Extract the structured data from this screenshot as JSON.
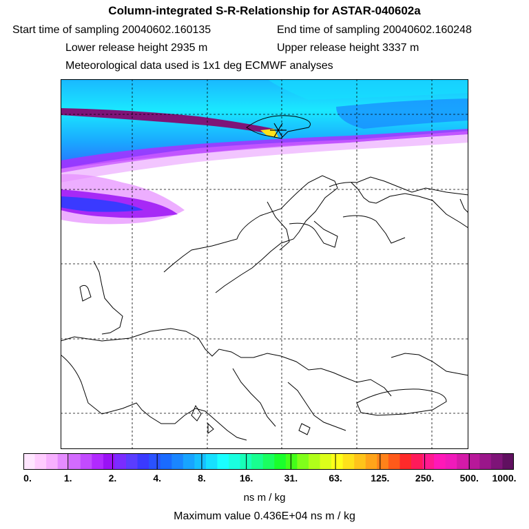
{
  "title": "Column-integrated S-R-Relationship for ASTAR-040602a",
  "header": {
    "start_time": "Start time of sampling 20040602.160135",
    "end_time": "End time of sampling 20040602.160248",
    "lower_height": "Lower release height 2935 m",
    "upper_height": "Upper release height 3337 m",
    "met_data": "Meteorological data used is 1x1 deg ECMWF analyses"
  },
  "colorbar": {
    "colors": [
      "#ffe6ff",
      "#ffccff",
      "#f7b0ff",
      "#e58cff",
      "#d36bff",
      "#c24bff",
      "#b12aff",
      "#9a12f5",
      "#7a2cff",
      "#5a3dff",
      "#3a3aff",
      "#2a52ff",
      "#1a6bff",
      "#1a86ff",
      "#18a4ff",
      "#16c0ff",
      "#16e0ff",
      "#1affff",
      "#1affe0",
      "#18ffb8",
      "#18ff90",
      "#1aff60",
      "#1aff2c",
      "#44ff1a",
      "#80ff1a",
      "#b0ff1a",
      "#dcff1a",
      "#ffff1a",
      "#ffe21a",
      "#ffc41a",
      "#ffa41a",
      "#ff821a",
      "#ff5a1a",
      "#ff2a2a",
      "#ff1a5a",
      "#ff1a90",
      "#ff18b8",
      "#f01aba",
      "#d41aa8",
      "#b8189a",
      "#9a168a",
      "#7e1478",
      "#601060"
    ],
    "tick_labels": [
      "0.",
      "1.",
      "2.",
      "4.",
      "8.",
      "16.",
      "31.",
      "63.",
      "125.",
      "250.",
      "500.",
      "1000."
    ],
    "units": "ns m / kg"
  },
  "max_value": "Maximum value  0.436E+04 ns m / kg"
}
